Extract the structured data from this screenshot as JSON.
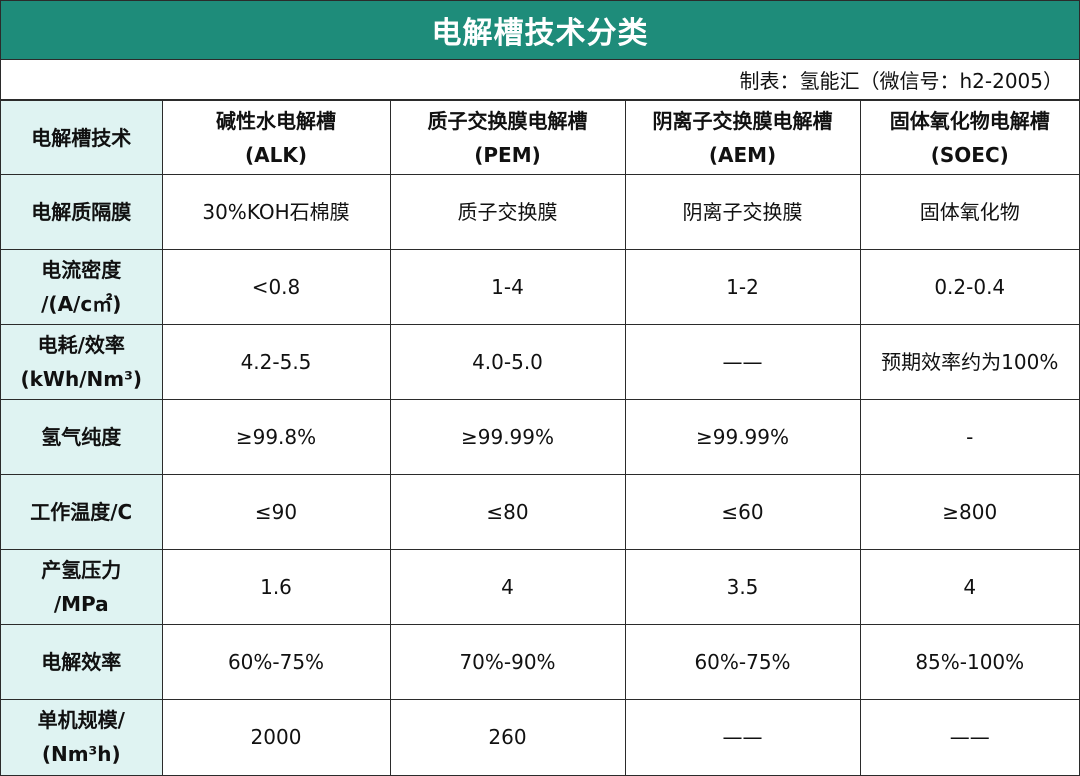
{
  "title": "电解槽技术分类",
  "source": "制表：氢能汇（微信号：h2-2005）",
  "header": {
    "row_label": "电解槽技术",
    "columns": [
      {
        "line1": "碱性水电解槽",
        "line2": "(ALK)"
      },
      {
        "line1": "质子交换膜电解槽",
        "line2": "(PEM)"
      },
      {
        "line1": "阴离子交换膜电解槽",
        "line2": "(AEM)"
      },
      {
        "line1": "固体氧化物电解槽",
        "line2": "(SOEC)"
      }
    ]
  },
  "rows": [
    {
      "label1": "电解质隔膜",
      "label2": "",
      "cells": [
        "30%KOH石棉膜",
        "质子交换膜",
        "阴离子交换膜",
        "固体氧化物"
      ]
    },
    {
      "label1": "电流密度",
      "label2": "/(A/c㎡)",
      "cells": [
        "<0.8",
        "1-4",
        "1-2",
        "0.2-0.4"
      ]
    },
    {
      "label1": "电耗/效率",
      "label2": "(kWh/Nm³)",
      "cells": [
        "4.2-5.5",
        "4.0-5.0",
        "——",
        "预期效率约为100%"
      ]
    },
    {
      "label1": "氢气纯度",
      "label2": "",
      "cells": [
        "≥99.8%",
        "≥99.99%",
        "≥99.99%",
        "-"
      ]
    },
    {
      "label1": "工作温度/C",
      "label2": "",
      "cells": [
        "≤90",
        "≤80",
        "≤60",
        "≥800"
      ]
    },
    {
      "label1": "产氢压力",
      "label2": "/MPa",
      "cells": [
        "1.6",
        "4",
        "3.5",
        "4"
      ]
    },
    {
      "label1": "电解效率",
      "label2": "",
      "cells": [
        "60%-75%",
        "70%-90%",
        "60%-75%",
        "85%-100%"
      ]
    },
    {
      "label1": "单机规模/",
      "label2": "(Nm³h)",
      "cells": [
        "2000",
        "260",
        "——",
        "——"
      ]
    }
  ]
}
